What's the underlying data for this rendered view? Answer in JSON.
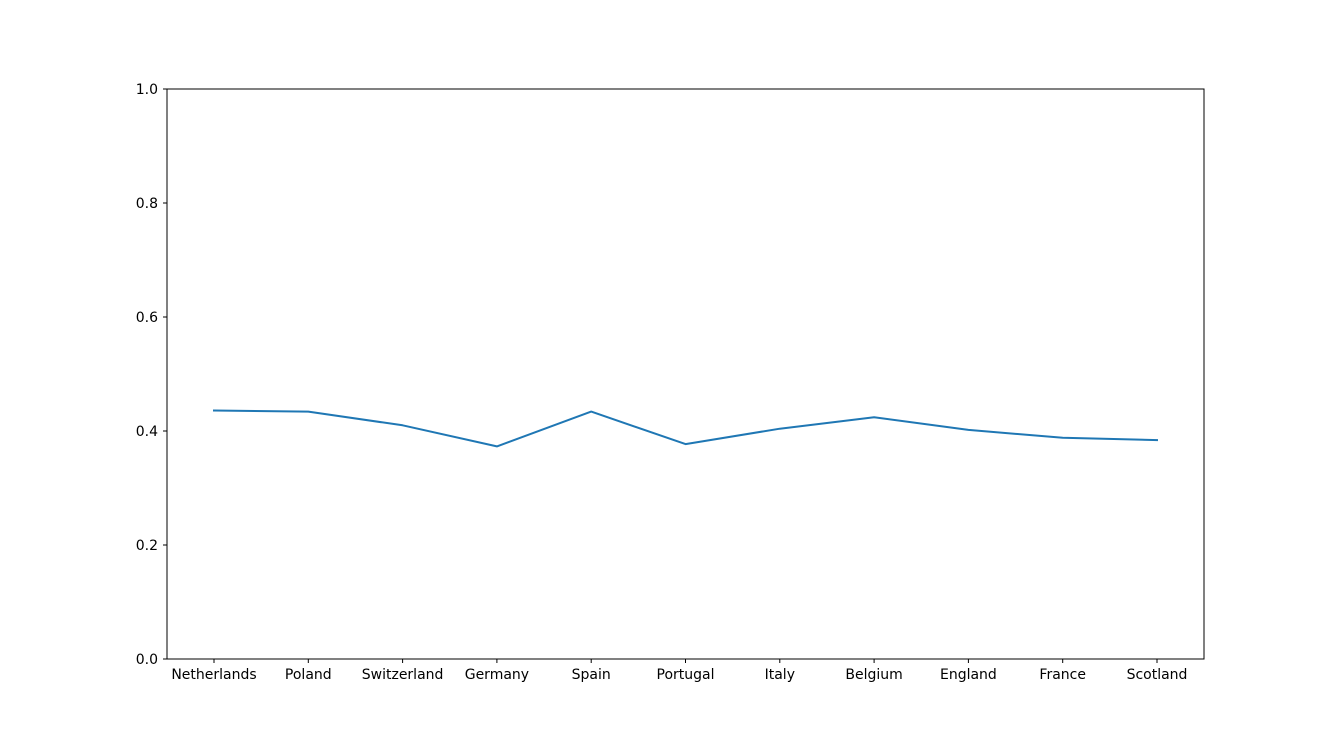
{
  "chart_data": {
    "type": "line",
    "title": "",
    "xlabel": "",
    "ylabel": "",
    "categories": [
      "Netherlands",
      "Poland",
      "Switzerland",
      "Germany",
      "Spain",
      "Portugal",
      "Italy",
      "Belgium",
      "England",
      "France",
      "Scotland"
    ],
    "series": [
      {
        "values": [
          0.436,
          0.434,
          0.41,
          0.373,
          0.434,
          0.377,
          0.404,
          0.424,
          0.402,
          0.388,
          0.384
        ],
        "color": "#1f77b4"
      }
    ],
    "ylim": [
      0,
      1
    ],
    "yticks": [
      0.0,
      0.2,
      0.4,
      0.6,
      0.8,
      1.0
    ],
    "ytick_labels": [
      "0.0",
      "0.2",
      "0.4",
      "0.6",
      "0.8",
      "1.0"
    ],
    "grid": false,
    "legend": "none"
  }
}
